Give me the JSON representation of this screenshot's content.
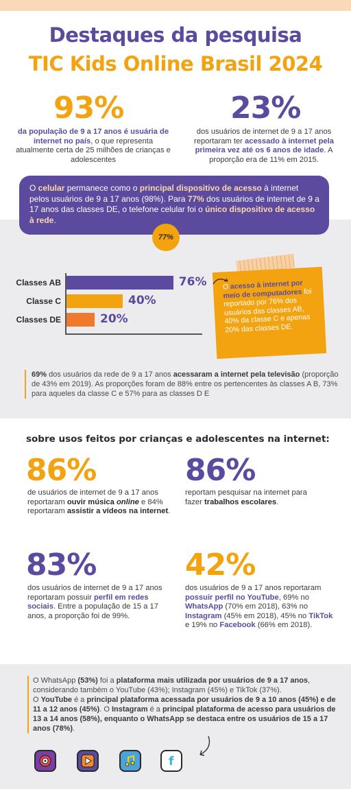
{
  "header": {
    "title_line1": "Destaques da pesquisa",
    "title_line2": "TIC Kids Online Brasil 2024"
  },
  "stats_top": [
    {
      "value": "93%",
      "text_hl": "da população de 9 a 17 anos é usuária de internet no país",
      "text_rest": ", o que representa atualmente certa de 25 milhões de crianças e adolescentes"
    },
    {
      "value": "23%",
      "text_a": "dos usuários de internet de 9 a 17 anos reportaram ter ",
      "text_hl": "acessado à internet pela primeira vez até os 6 anos de idade",
      "text_rest": ". A proporção era de 11% em 2015."
    }
  ],
  "celular_box": {
    "p1": "O ",
    "b1": "celular",
    "p2": " permanece como o ",
    "b2": "principal dispositivo de acesso",
    "p3": " à internet pelos usuários de 9 a 17 anos (98%). Para ",
    "b3": "77%",
    "p4": " dos usuários de internet de 9 a 17 anos das classes DE, o telefone celular foi o ",
    "b4": "único dispositivo de acesso à rede",
    "p5": ".",
    "badge": "77%"
  },
  "chart_data": {
    "type": "bar",
    "orientation": "horizontal",
    "categories": [
      "Classes AB",
      "Classe C",
      "Classes DE"
    ],
    "values": [
      76,
      40,
      20
    ],
    "value_labels": [
      "76%",
      "40%",
      "20%"
    ],
    "colors": [
      "#5b4a9e",
      "#f2a30f",
      "#ef7a2e"
    ],
    "xlim": [
      0,
      100
    ]
  },
  "computer_note": {
    "p1": "O ",
    "b1": "acesso à internet por meio de computadores",
    "p2": " foi reportado por 76% dos usuários das classes AB, 40% da classe C e apenas 20% das classes DE."
  },
  "tv_note": {
    "b1": "69%",
    "p1": " dos usuários da rede de 9 a 17 anos ",
    "b2": "acessaram a internet pela televisão",
    "p2": " (proporção de 43% em 2019). As proporções foram de 88% entre os pertencentes às classes A B, 73% para aqueles da classe C e 57% para as classes D E"
  },
  "usage_section": {
    "heading": "sobre usos feitos por crianças e adolescentes na internet:",
    "stats": [
      {
        "value": "86%",
        "t1": "de usuários de internet de 9 a 17 anos reportaram ",
        "b1": "ouvir música ",
        "i1": "online",
        "t2": " e 84% reportaram ",
        "b2": "assistir a vídeos na internet",
        "t3": "."
      },
      {
        "value": "86%",
        "t1": "reportam pesquisar na internet para fazer ",
        "b1": "trabalhos escolares",
        "t2": "."
      },
      {
        "value": "83%",
        "t1": "dos usuários de internet de 9 a 17 anos reportaram possuir ",
        "b1": "perfil em redes sociais",
        "t2": ". Entre a população de 15 a 17 anos, a proporção foi de 99%."
      },
      {
        "value": "42%",
        "t1": "dos usuários de 9 a 17 anos reportaram ",
        "b1": "possuir perfil no YouTube",
        "t2": ", 69% no ",
        "b2": "WhatsApp",
        "t3": " (70% em 2018), 63% no ",
        "b3": "Instagram",
        "t4": " (45% em 2018), 45% no ",
        "b4": "TikTok",
        "t5": " e 19% no ",
        "b5": "Facebook",
        "t6": " (66% em 2018)."
      }
    ]
  },
  "platforms_note": {
    "p1": "O WhatsApp ",
    "b1": "(53%)",
    "p2": " foi a ",
    "b2": "plataforma mais utilizada por usuários de 9 a 17 anos",
    "p3": ", considerando também o YouTube (43%); Instagram (45%) e TikTok (37%).",
    "p4": "O ",
    "b3": "YouTube",
    "p5": " é a ",
    "b4": "principal plataforma acessada por usuários de 9 a 10 anos (45%) e de 11 a 12 anos (45%)",
    "p6": ". O ",
    "b5": "Instagram",
    "p7": " é a ",
    "b6": "principal plataforma de acesso para usuários de 13 a 14 anos (58%), enquanto o WhatsApp se destaca entre os usuários de 15 a 17 anos (78%)",
    "p8": "."
  },
  "app_icons": [
    "music-app-icon",
    "video-play-app-icon",
    "music-note-app-icon",
    "facebook-app-icon"
  ],
  "colors": {
    "purple": "#5b4a9e",
    "orange": "#f2a30f",
    "dark_orange": "#ef7a2e",
    "peach": "#f9d9b8",
    "gray_bg": "#ecebee"
  }
}
